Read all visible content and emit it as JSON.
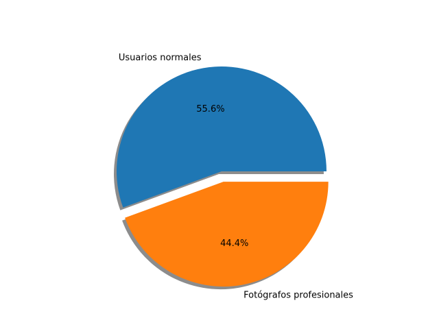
{
  "chart_data": {
    "type": "pie",
    "slices": [
      {
        "label": "Usuarios normales",
        "value": 55.6,
        "pct_label": "55.6%",
        "color": "#1f77b4",
        "explode": 0.0
      },
      {
        "label": "Fotógrafos profesionales",
        "value": 44.4,
        "pct_label": "44.4%",
        "color": "#ff7f0e",
        "explode": 0.1
      }
    ],
    "start_angle_deg": 0,
    "counterclockwise": true,
    "shadow": true
  }
}
